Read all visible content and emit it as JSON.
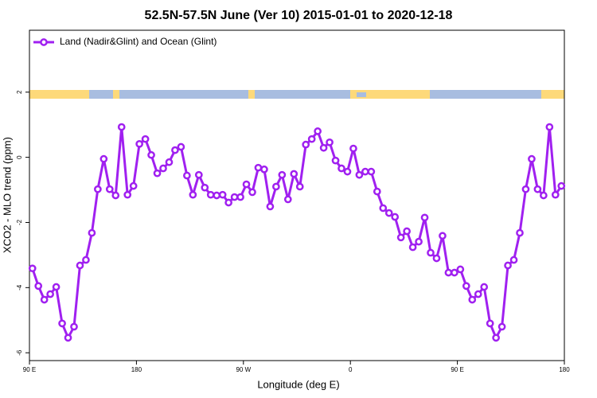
{
  "chart_data": {
    "type": "line",
    "title": "52.5N-57.5N June (Ver 10)   2015-01-01 to 2020-12-18",
    "x_label": "Longitude (deg E)",
    "y_label": "XCO2 - MLO trend (ppm)",
    "x": [
      92.5,
      97.5,
      102.5,
      107.5,
      112.5,
      117.5,
      122.5,
      127.5,
      132.5,
      137.5,
      142.5,
      147.5,
      152.5,
      157.5,
      162.5,
      167.5,
      172.5,
      177.5,
      182.5,
      187.5,
      192.5,
      197.5,
      202.5,
      207.5,
      212.5,
      217.5,
      222.5,
      227.5,
      232.5,
      237.5,
      242.5,
      247.5,
      252.5,
      257.5,
      262.5,
      267.5,
      272.5,
      277.5,
      282.5,
      287.5,
      292.5,
      297.5,
      302.5,
      307.5,
      312.5,
      317.5,
      322.5,
      327.5,
      332.5,
      337.5,
      342.5,
      347.5,
      352.5,
      357.5,
      362.5,
      367.5,
      372.5,
      377.5,
      382.5,
      387.5,
      392.5,
      397.5,
      402.5,
      407.5,
      412.5,
      417.5,
      422.5,
      427.5,
      432.5,
      437.5,
      442.5,
      447.5,
      452.5,
      457.5,
      462.5,
      467.5,
      472.5,
      477.5,
      482.5,
      487.5,
      492.5,
      497.5,
      502.5,
      507.5,
      512.5,
      517.5,
      522.5,
      527.5,
      532.5,
      537.5
    ],
    "series": [
      {
        "name": "Land (Nadir&Glint) and Ocean (Glint)",
        "color": "#a020f0",
        "values": [
          -3.41,
          -3.95,
          -4.37,
          -4.2,
          -3.98,
          -5.1,
          -5.54,
          -5.2,
          -3.32,
          -3.15,
          -2.32,
          -0.98,
          -0.05,
          -0.98,
          -1.17,
          0.93,
          -1.15,
          -0.88,
          0.41,
          0.56,
          0.07,
          -0.49,
          -0.34,
          -0.15,
          0.22,
          0.32,
          -0.56,
          -1.15,
          -0.54,
          -0.93,
          -1.15,
          -1.17,
          -1.15,
          -1.39,
          -1.22,
          -1.22,
          -0.83,
          -1.07,
          -0.32,
          -0.37,
          -1.51,
          -0.9,
          -0.54,
          -1.29,
          -0.51,
          -0.9,
          0.39,
          0.56,
          0.8,
          0.29,
          0.46,
          -0.1,
          -0.34,
          -0.44,
          0.27,
          -0.54,
          -0.44,
          -0.44,
          -1.05,
          -1.56,
          -1.71,
          -1.83,
          -2.46,
          -2.27,
          -2.76,
          -2.59,
          -1.85,
          -2.93,
          -3.1,
          -2.41,
          -3.54,
          -3.54,
          -3.44,
          -3.95,
          -4.37,
          -4.2,
          -3.98,
          -5.1,
          -5.54,
          -5.2,
          -3.32,
          -3.15,
          -2.32,
          -0.98,
          -0.05,
          -0.98,
          -1.17,
          0.93,
          -1.15,
          -0.88
        ]
      }
    ],
    "xlim": [
      90,
      540
    ],
    "xticks": [
      {
        "value": 90,
        "label": "90 E"
      },
      180,
      {
        "value": 270,
        "label": "90 W"
      },
      0,
      {
        "value": 450,
        "label": "90 E"
      },
      {
        "value": 540,
        "label": "180"
      }
    ],
    "ylim": [
      -6.24,
      3.9
    ],
    "yticks": [
      -6,
      -4,
      -2,
      0,
      2
    ],
    "legend": "top-left"
  }
}
